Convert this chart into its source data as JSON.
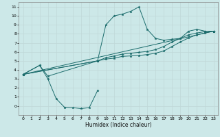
{
  "title": "",
  "xlabel": "Humidex (Indice chaleur)",
  "ylabel": "",
  "bg_color": "#cce8e8",
  "grid_color": "#c0d8d8",
  "line_color": "#1a6b6b",
  "xlim": [
    -0.5,
    23.5
  ],
  "ylim": [
    -1,
    11.5
  ],
  "xticks": [
    0,
    1,
    2,
    3,
    4,
    5,
    6,
    7,
    8,
    9,
    10,
    11,
    12,
    13,
    14,
    15,
    16,
    17,
    18,
    19,
    20,
    21,
    22,
    23
  ],
  "yticks": [
    0,
    1,
    2,
    3,
    4,
    5,
    6,
    7,
    8,
    9,
    10,
    11
  ],
  "lines": [
    {
      "x": [
        0,
        2,
        3,
        4,
        5,
        6,
        7,
        8,
        9
      ],
      "y": [
        3.5,
        4.5,
        3.0,
        0.8,
        -0.15,
        -0.2,
        -0.3,
        -0.2,
        1.7
      ]
    },
    {
      "x": [
        0,
        2,
        3,
        9,
        10,
        11,
        12,
        13,
        14,
        15,
        16,
        17,
        18,
        19,
        20,
        21,
        22,
        23
      ],
      "y": [
        3.5,
        4.5,
        3.3,
        5.0,
        9.0,
        10.0,
        10.2,
        10.5,
        11.0,
        8.5,
        7.5,
        7.3,
        7.4,
        7.5,
        8.3,
        8.5,
        8.3,
        8.3
      ]
    },
    {
      "x": [
        0,
        23
      ],
      "y": [
        3.5,
        8.3
      ]
    },
    {
      "x": [
        0,
        9,
        10,
        11,
        12,
        13,
        14,
        15,
        16,
        17,
        18,
        19,
        20,
        21,
        22,
        23
      ],
      "y": [
        3.5,
        5.0,
        5.2,
        5.3,
        5.5,
        5.55,
        5.6,
        5.7,
        5.85,
        6.1,
        6.6,
        7.1,
        7.55,
        7.9,
        8.1,
        8.3
      ]
    },
    {
      "x": [
        0,
        9,
        10,
        11,
        12,
        13,
        14,
        15,
        16,
        17,
        18,
        19,
        20,
        21,
        22,
        23
      ],
      "y": [
        3.5,
        5.0,
        5.35,
        5.55,
        5.75,
        5.85,
        5.95,
        6.05,
        6.25,
        6.6,
        7.1,
        7.5,
        7.9,
        8.1,
        8.25,
        8.3
      ]
    }
  ]
}
